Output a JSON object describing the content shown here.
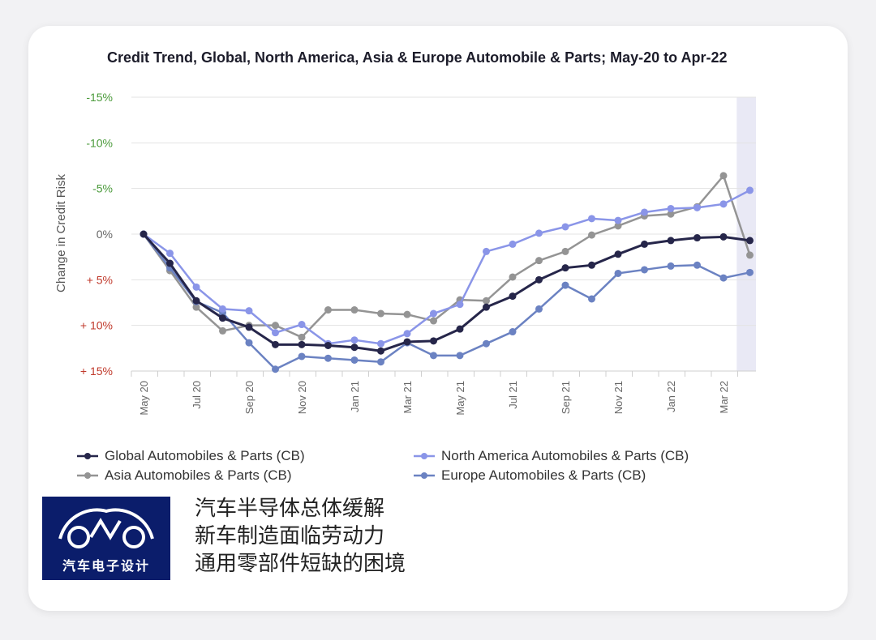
{
  "chart_data": {
    "type": "line",
    "title": "Credit Trend, Global, North America, Asia & Europe Automobile & Parts; May-20 to Apr-22",
    "ylabel": "Change in Credit Risk",
    "ylim": [
      -15,
      15
    ],
    "y_inverted": true,
    "yticks": [
      -15,
      -10,
      -5,
      0,
      5,
      10,
      15
    ],
    "ytick_labels": [
      "-15%",
      "-10%",
      "-5%",
      "0%",
      "+ 5%",
      "+ 10%",
      "+ 15%"
    ],
    "x": [
      "May 20",
      "Jun 20",
      "Jul 20",
      "Aug 20",
      "Sep 20",
      "Oct 20",
      "Nov 20",
      "Dec 20",
      "Jan 21",
      "Feb 21",
      "Mar 21",
      "Apr 21",
      "May 21",
      "Jun 21",
      "Jul 21",
      "Aug 21",
      "Sep 21",
      "Oct 21",
      "Nov 21",
      "Dec 21",
      "Jan 22",
      "Feb 22",
      "Mar 22",
      "Apr 22"
    ],
    "xtick_labels": [
      "May 20",
      "Jul 20",
      "Sep 20",
      "Nov 20",
      "Jan 21",
      "Mar 21",
      "May 21",
      "Jul 21",
      "Sep 21",
      "Nov 21",
      "Jan 22",
      "Mar 22"
    ],
    "xtick_index": [
      0,
      2,
      4,
      6,
      8,
      10,
      12,
      14,
      16,
      18,
      20,
      22
    ],
    "highlight_last_period": true,
    "grid": true,
    "legend_position": "bottom",
    "series": [
      {
        "name": "Global Automobiles & Parts (CB)",
        "color": "#26264a",
        "values": [
          0,
          3.2,
          7.3,
          9.2,
          10.2,
          12.1,
          12.1,
          12.2,
          12.4,
          12.8,
          11.8,
          11.7,
          10.4,
          8,
          6.8,
          5,
          3.7,
          3.4,
          2.2,
          1.1,
          0.7,
          0.4,
          0.3,
          0.7
        ]
      },
      {
        "name": "North America Automobiles & Parts (CB)",
        "color": "#8a95e8",
        "values": [
          0,
          2.1,
          5.8,
          8.2,
          8.4,
          10.8,
          9.9,
          12,
          11.6,
          12,
          10.9,
          8.7,
          7.7,
          1.9,
          1.1,
          -0.1,
          -0.8,
          -1.7,
          -1.5,
          -2.4,
          -2.8,
          -2.9,
          -3.3,
          -4.8
        ]
      },
      {
        "name": "Asia Automobiles & Parts (CB)",
        "color": "#949494",
        "values": [
          0,
          4,
          8,
          10.6,
          10,
          10,
          11.3,
          8.3,
          8.3,
          8.7,
          8.8,
          9.5,
          7.2,
          7.3,
          4.7,
          2.9,
          1.9,
          0.1,
          -0.9,
          -2,
          -2.2,
          -3,
          -6.4,
          2.3
        ]
      },
      {
        "name": "Europe Automobiles & Parts (CB)",
        "color": "#6b82c2",
        "values": [
          0,
          3.7,
          7.4,
          8.6,
          11.9,
          14.8,
          13.4,
          13.6,
          13.8,
          14,
          11.9,
          13.3,
          13.3,
          12,
          10.7,
          8.2,
          5.6,
          7.1,
          4.3,
          3.9,
          3.5,
          3.4,
          4.8,
          4.2
        ]
      }
    ]
  },
  "caption_lines": [
    "汽车半导体总体缓解",
    "新车制造面临劳动力",
    "通用零部件短缺的困境"
  ],
  "logo": {
    "text": "汽车电子设计"
  },
  "colors": {
    "negative_tick": "#4a9a3a",
    "positive_tick": "#c0392b",
    "zero_tick": "#666666",
    "highlight": "#e9e9f5"
  }
}
